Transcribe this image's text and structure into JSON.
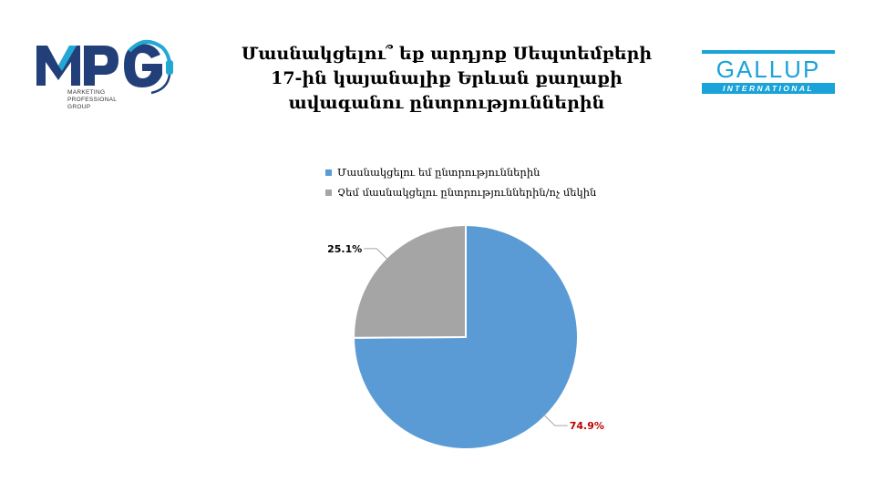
{
  "title_lines": [
    "Մասնակցելու՞ եք արդյոք Սեպտեմբերի",
    "17-ին կայանալիք Երևան քաղաքի",
    "ավագանու ընտրություններին"
  ],
  "logo_left": {
    "text": "MPG",
    "subtitle_lines": [
      "MARKETING",
      "PROFESSIONAL",
      "GROUP"
    ]
  },
  "logo_right": {
    "text": "GALLUP",
    "subtitle": "INTERNATIONAL"
  },
  "chart_data": {
    "type": "pie",
    "series": [
      {
        "name": "Մասնակցելու եմ ընտրություններին",
        "value": 74.9,
        "label": "74.9%",
        "color": "#5b9bd5",
        "label_color": "#c00000"
      },
      {
        "name": "Չեմ մասնակցելու ընտրություններին/ոչ մեկին",
        "value": 25.1,
        "label": "25.1%",
        "color": "#a5a5a5",
        "label_color": "#000000"
      }
    ],
    "start_angle_deg": 0,
    "direction": "clockwise",
    "legend_position": "top"
  }
}
